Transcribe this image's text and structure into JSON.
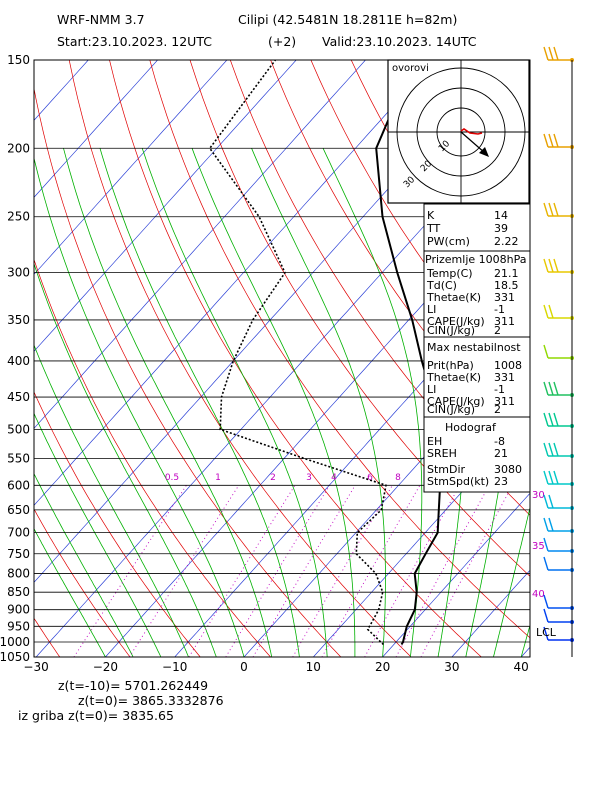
{
  "header": {
    "model": "WRF-NMM 3.7",
    "station": "Cilipi (42.5481N 18.2811E h=82m)",
    "start": "Start:23.10.2023. 12UTC",
    "offset": "(+2)",
    "valid": "Valid:23.10.2023. 14UTC"
  },
  "hodograph": {
    "label": "ovorovi",
    "ring_labels": [
      "10",
      "20",
      "30"
    ]
  },
  "stats": {
    "indices": [
      {
        "label": "K",
        "value": "14"
      },
      {
        "label": "TT",
        "value": "39"
      },
      {
        "label": "PW(cm)",
        "value": "2.22"
      }
    ],
    "surface_title": "Prizemlje 1008hPa",
    "surface": [
      {
        "label": "Temp(C)",
        "value": "21.1"
      },
      {
        "label": "Td(C)",
        "value": "18.5"
      },
      {
        "label": "Thetae(K)",
        "value": "331"
      },
      {
        "label": "LI",
        "value": "-1"
      },
      {
        "label": "CAPE(J/kg)",
        "value": "311"
      },
      {
        "label": "CIN(J/kg)",
        "value": "2"
      }
    ],
    "unstable_title": "Max nestabilnost",
    "unstable": [
      {
        "label": "Prit(hPa)",
        "value": "1008"
      },
      {
        "label": "Thetae(K)",
        "value": "331"
      },
      {
        "label": "LI",
        "value": "-1"
      },
      {
        "label": "CAPE(J/kg)",
        "value": "311"
      },
      {
        "label": "CIN(J/kg)",
        "value": "2"
      }
    ],
    "hodo_title": "Hodograf",
    "hodo": [
      {
        "label": "EH",
        "value": "-8"
      },
      {
        "label": "SREH",
        "value": "21"
      },
      {
        "label": "StmDir",
        "value": "3080"
      },
      {
        "label": "StmSpd(kt)",
        "value": "23"
      }
    ]
  },
  "chart_data": {
    "type": "line",
    "xlabel": "",
    "ylabel": "",
    "x_ticks": [
      -30,
      -20,
      -10,
      0,
      10,
      20,
      30,
      40
    ],
    "y_ticks": [
      150,
      200,
      250,
      300,
      350,
      400,
      450,
      500,
      550,
      600,
      650,
      700,
      750,
      800,
      850,
      900,
      950,
      1000,
      1050
    ],
    "xlim": [
      -30,
      40
    ],
    "ylim": [
      1050,
      150
    ],
    "y_scale": "log",
    "mixing_ratio_labels": [
      "0.5",
      "1",
      "2",
      "3",
      "4",
      "6",
      "8"
    ],
    "height_labels": [
      "30",
      "35",
      "40"
    ],
    "lcl_label": "LCL",
    "series": [
      {
        "values": [
          {
            "p": 1008,
            "t": 21.1
          },
          {
            "p": 1000,
            "t": 21.0
          },
          {
            "p": 950,
            "t": 19.5
          },
          {
            "p": 900,
            "t": 18.5
          },
          {
            "p": 850,
            "t": 16.5
          },
          {
            "p": 800,
            "t": 13.8
          },
          {
            "p": 750,
            "t": 12.8
          },
          {
            "p": 700,
            "t": 11.8
          },
          {
            "p": 650,
            "t": 9.0
          },
          {
            "p": 600,
            "t": 6.0
          },
          {
            "p": 550,
            "t": 2.8
          },
          {
            "p": 500,
            "t": -1.4
          },
          {
            "p": 450,
            "t": -6.6
          },
          {
            "p": 400,
            "t": -12.8
          },
          {
            "p": 350,
            "t": -19.5
          },
          {
            "p": 300,
            "t": -27.8
          },
          {
            "p": 250,
            "t": -37.2
          },
          {
            "p": 200,
            "t": -47.0
          },
          {
            "p": 150,
            "t": -53.0
          }
        ]
      },
      {
        "values": [
          {
            "p": 1008,
            "t": 18.5
          },
          {
            "p": 1000,
            "t": 17.8
          },
          {
            "p": 960,
            "t": 14.3
          },
          {
            "p": 900,
            "t": 13.3
          },
          {
            "p": 850,
            "t": 11.6
          },
          {
            "p": 800,
            "t": 8.2
          },
          {
            "p": 750,
            "t": 2.8
          },
          {
            "p": 700,
            "t": 0.2
          },
          {
            "p": 650,
            "t": 0.7
          },
          {
            "p": 600,
            "t": -1.8
          },
          {
            "p": 550,
            "t": -17.0
          },
          {
            "p": 500,
            "t": -33.0
          },
          {
            "p": 450,
            "t": -37.0
          },
          {
            "p": 400,
            "t": -40.0
          },
          {
            "p": 350,
            "t": -42.5
          },
          {
            "p": 300,
            "t": -44.0
          },
          {
            "p": 250,
            "t": -55.0
          },
          {
            "p": 200,
            "t": -71.0
          },
          {
            "p": 150,
            "t": -73.0
          }
        ]
      }
    ]
  },
  "footer": {
    "line1": "z(t=-10)= 5701.262449",
    "line2": "z(t=0)= 3865.3332876",
    "line3": "iz griba z(t=0)= 3835.65"
  }
}
